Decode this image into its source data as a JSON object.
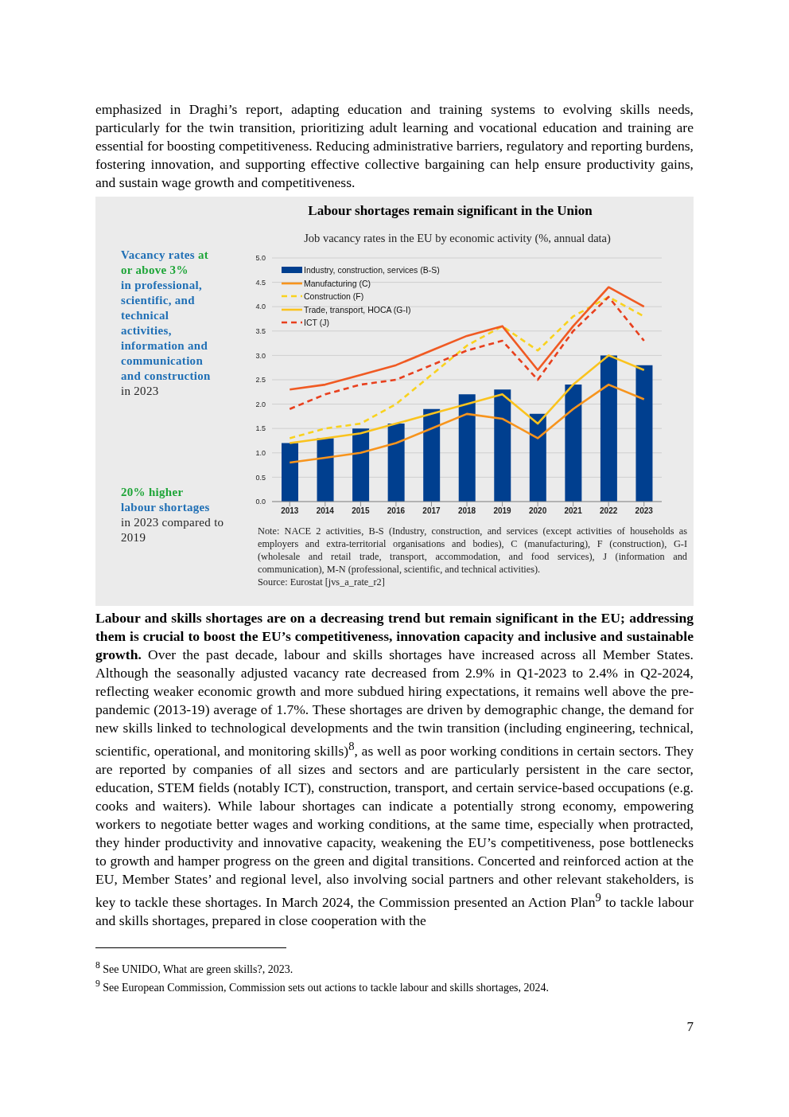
{
  "chart_data": {
    "type": "bar",
    "title": "Labour shortages remain significant in the Union",
    "subtitle": "Job vacancy rates in the EU by economic activity (%, annual data)",
    "categories": [
      "2013",
      "2014",
      "2015",
      "2016",
      "2017",
      "2018",
      "2019",
      "2020",
      "2021",
      "2022",
      "2023"
    ],
    "series": [
      {
        "name": "Industry, construction, services (B-S)",
        "color": "#003f8f",
        "values": [
          1.2,
          1.3,
          1.5,
          1.6,
          1.9,
          2.2,
          2.3,
          1.8,
          2.4,
          3.0,
          2.8
        ]
      },
      {
        "name": "Manufacturing (C)",
        "type": "line",
        "line_style": "solid",
        "color": "#f7941d",
        "values": [
          0.8,
          0.9,
          1.0,
          1.2,
          1.5,
          1.8,
          1.7,
          1.3,
          1.9,
          2.4,
          2.1
        ]
      },
      {
        "name": "Construction (F)",
        "type": "line",
        "line_style": "dashed",
        "color": "#f9d21e",
        "values": [
          1.3,
          1.5,
          1.6,
          2.0,
          2.6,
          3.2,
          3.6,
          3.1,
          3.8,
          4.2,
          3.8
        ]
      },
      {
        "name": "Trade, transport, HOCA (G-I)",
        "type": "line",
        "line_style": "solid",
        "color": "#fac31e",
        "values": [
          1.2,
          1.3,
          1.4,
          1.6,
          1.8,
          2.0,
          2.2,
          1.6,
          2.4,
          3.0,
          2.7
        ]
      },
      {
        "name": "ICT (J)",
        "type": "line",
        "line_style": "dashed",
        "color": "#e8401e",
        "values": [
          1.9,
          2.2,
          2.4,
          2.5,
          2.8,
          3.1,
          3.3,
          2.5,
          3.5,
          4.2,
          3.3
        ]
      },
      {
        "type": "line",
        "line_style": "solid",
        "color": "#f05a23",
        "values": [
          2.3,
          2.4,
          2.6,
          2.8,
          3.1,
          3.4,
          3.6,
          2.7,
          3.6,
          4.4,
          4.0
        ]
      }
    ],
    "ylim": [
      0,
      5
    ],
    "yticks": [
      {
        "value": 0,
        "label": "0.0"
      },
      {
        "value": 0.5,
        "label": "0.5"
      },
      {
        "value": 1,
        "label": "1.0"
      },
      {
        "value": 1.5,
        "label": "1.5"
      },
      {
        "value": 2,
        "label": "2.0"
      },
      {
        "value": 2.5,
        "label": "2.5"
      },
      {
        "value": 3,
        "label": "3.0"
      },
      {
        "value": 3.5,
        "label": "3.5"
      },
      {
        "value": 4,
        "label": "4.0"
      },
      {
        "value": 4.5,
        "label": "4.5"
      },
      {
        "value": 5,
        "label": "5.0"
      }
    ],
    "grid": "y",
    "legend": "top left",
    "marker": "none",
    "annotations": [
      "emphasized in Draghi’s report, adapting education and training systems to evolving skills needs, particularly for the twin transition, prioritizing adult learning and vocational education and training are essential for boosting competitiveness. Reducing administrative barriers, regulatory and reporting burdens, fostering innovation, and supporting effective collective bargaining can help ensure productivity gains, and sustain wage growth and competitiveness.",
      "Vacancy rates",
      "at or above 3%",
      "in professional, scientific, and technical activities, information and communication and construction",
      "in 2023",
      "20% higher",
      "labour shortages",
      "in 2023 compared to 2019",
      "Note: NACE 2 activities, B-S (Industry, construction, and services (except activities of households as employers and extra-territorial organisations and bodies), C (manufacturing), F (construction), G-I (wholesale and retail trade, transport, accommodation, and food services), J (information and communication), M-N (professional, scientific, and technical activities).",
      "Source: Eurostat [jvs_a_rate_r2]",
      "Labour and skills shortages are on a decreasing trend but remain significant in the EU; addressing them is crucial to boost the EU’s competitiveness, innovation capacity and inclusive and sustainable growth.",
      "Over the past decade, labour and skills shortages have increased across all Member States. Although the seasonally adjusted vacancy rate decreased from 2.9% in Q1-2023 to 2.4% in Q2-2024, reflecting weaker economic growth and more subdued hiring expectations, it remains well above the pre-pandemic (2013-19) average of 1.7%. These shortages are driven by demographic change, the demand for new skills linked to technological developments and the twin transition (including engineering, technical, scientific, operational, and monitoring skills)$^{8}$, as well as poor working conditions in certain sectors. They are reported by companies of all sizes and sectors and are particularly persistent in the care sector, education, STEM fields (notably ICT), construction, transport, and certain service-based occupations (e.g. cooks and waiters). While labour shortages can indicate a potentially strong economy, empowering workers to negotiate better wages and working conditions, at the same time, especially when protracted, they hinder productivity and innovative capacity, weakening the EU’s competitiveness, pose bottlenecks to growth and hamper progress on the green and digital transitions. Concerted and reinforced action at the EU, Member States’ and regional level, also involving social partners and other relevant stakeholders, is key to tackle these shortages. In March 2024, the Commission presented an Action Plan$^{9}$ to tackle labour and skills shortages, prepared in close cooperation with the",
      "$^{8}$ See UNIDO, What are green skills?, 2023.",
      "$^{9}$ See European Commission, Commission sets out actions to tackle labour and skills shortages, 2024.",
      "7"
    ]
  }
}
